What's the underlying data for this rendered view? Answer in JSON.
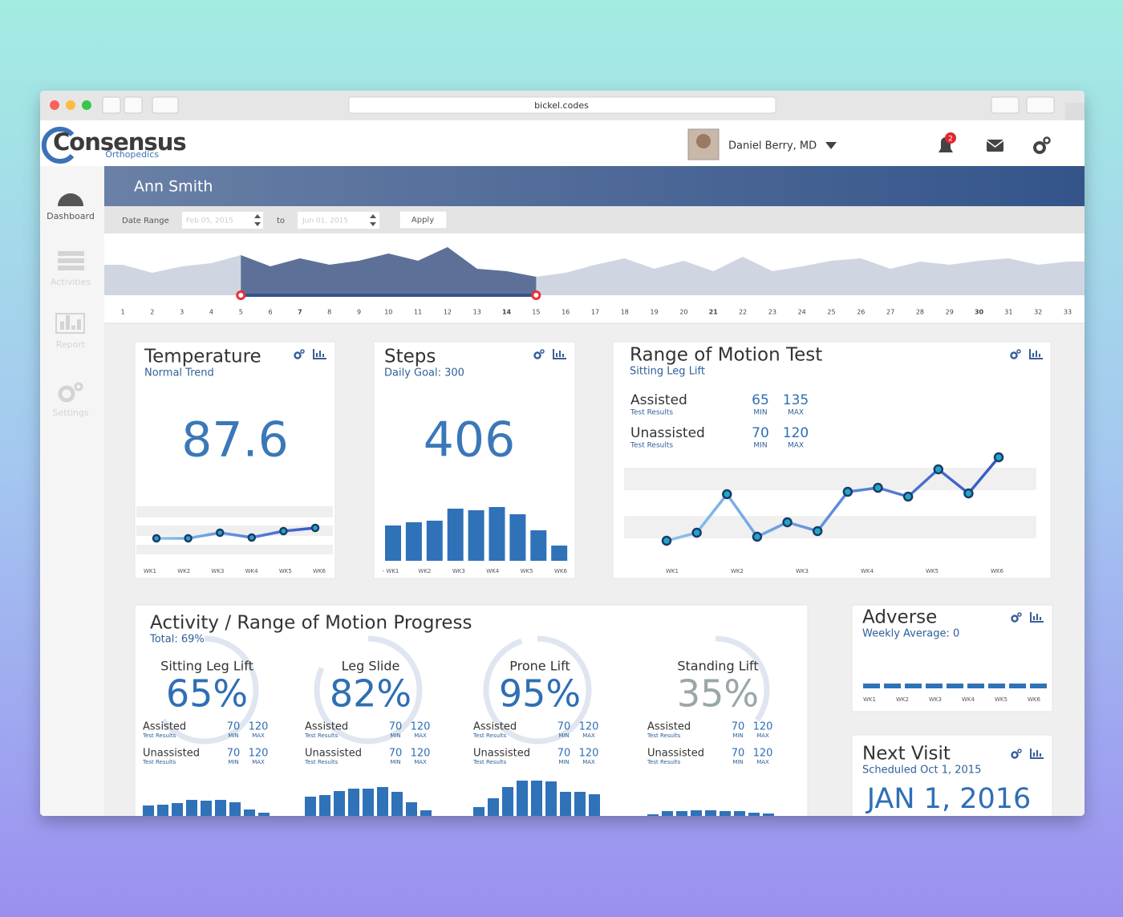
{
  "browser": {
    "url": "bickel.codes"
  },
  "header": {
    "brand": "Consensus",
    "brand_sub": "Orthopedics",
    "user": "Daniel Berry, MD",
    "notifications": 2
  },
  "sidebar": [
    {
      "label": "Dashboard",
      "active": true
    },
    {
      "label": "Activities",
      "active": false
    },
    {
      "label": "Report",
      "active": false
    },
    {
      "label": "Settings",
      "active": false
    }
  ],
  "patient": "Ann Smith",
  "filter": {
    "label": "Date Range",
    "from": "Feb 05, 2015",
    "to_label": "to",
    "to": "Jun 01, 2015",
    "button": "Apply"
  },
  "timeline": {
    "days": [
      1,
      2,
      3,
      4,
      5,
      6,
      7,
      8,
      9,
      10,
      11,
      12,
      13,
      14,
      15,
      16,
      17,
      18,
      19,
      20,
      21,
      22,
      23,
      24,
      25,
      26,
      27,
      28,
      29,
      30,
      31,
      32,
      33
    ],
    "highlighted": [
      7,
      14,
      21,
      30
    ],
    "values": [
      38,
      28,
      36,
      40,
      50,
      36,
      46,
      38,
      43,
      52,
      43,
      60,
      33,
      30,
      23,
      28,
      38,
      46,
      33,
      43,
      30,
      48,
      30,
      36,
      43,
      46,
      33,
      42,
      38,
      43,
      46,
      38,
      42
    ],
    "range": [
      5,
      15
    ]
  },
  "labels": {
    "min": "MIN",
    "max": "MAX"
  },
  "temperature": {
    "title": "Temperature",
    "subtitle": "Normal Trend",
    "value": 87.6,
    "trend": [
      4,
      4,
      11,
      5,
      13,
      17
    ],
    "weeks": [
      "WK1",
      "WK2",
      "WK3",
      "WK4",
      "WK5",
      "WK6"
    ]
  },
  "steps": {
    "title": "Steps",
    "subtitle": "Daily Goal: 300",
    "value": 406,
    "bars": [
      44,
      48,
      50,
      65,
      63,
      67,
      58,
      38,
      19
    ],
    "weeks": [
      "- WK1",
      "WK2",
      "WK3",
      "WK4",
      "WK5",
      "WK6"
    ]
  },
  "rom": {
    "title": "Range of Motion Test",
    "subtitle": "Sitting Leg Lift",
    "rows": [
      {
        "label": "Assisted",
        "sub": "Test Results",
        "min": 65,
        "max": 135
      },
      {
        "label": "Unassisted",
        "sub": "Test Results",
        "min": 70,
        "max": 120
      }
    ],
    "points": [
      16,
      26,
      74,
      21,
      39,
      28,
      77,
      82,
      71,
      105,
      75,
      120
    ],
    "weeks": [
      "WK1",
      "WK2",
      "WK3",
      "WK4",
      "WK5",
      "WK6"
    ]
  },
  "activity": {
    "title": "Activity / Range of Motion Progress",
    "total": "Total: 69%",
    "items": [
      {
        "name": "Sitting Leg Lift",
        "percent": 65,
        "percent_label": "65%",
        "rows": [
          {
            "label": "Assisted",
            "sub": "Test Results",
            "min": 70,
            "max": 120
          },
          {
            "label": "Unassisted",
            "sub": "Test Results",
            "min": 70,
            "max": 120
          }
        ],
        "bars": [
          13,
          14,
          16,
          20,
          19,
          20,
          17,
          8,
          4
        ]
      },
      {
        "name": "Leg Slide",
        "percent": 82,
        "percent_label": "82%",
        "rows": [
          {
            "label": "Assisted",
            "sub": "Test Results",
            "min": 70,
            "max": 120
          },
          {
            "label": "Unassisted",
            "sub": "Test Results",
            "min": 70,
            "max": 120
          }
        ],
        "bars": [
          24,
          26,
          31,
          34,
          34,
          36,
          30,
          17,
          7
        ]
      },
      {
        "name": "Prone Lift",
        "percent": 95,
        "percent_label": "95%",
        "rows": [
          {
            "label": "Assisted",
            "sub": "Test Results",
            "min": 70,
            "max": 120
          },
          {
            "label": "Unassisted",
            "sub": "Test Results",
            "min": 70,
            "max": 120
          }
        ],
        "bars": [
          11,
          22,
          36,
          44,
          44,
          43,
          30,
          30,
          27
        ]
      },
      {
        "name": "Standing Lift",
        "percent": 35,
        "percent_label": "35%",
        "rows": [
          {
            "label": "Assisted",
            "sub": "Test Results",
            "min": 70,
            "max": 120
          },
          {
            "label": "Unassisted",
            "sub": "Test Results",
            "min": 70,
            "max": 120
          }
        ],
        "bars": [
          2,
          6,
          6,
          7,
          7,
          6,
          6,
          4,
          3
        ]
      }
    ]
  },
  "adverse": {
    "title": "Adverse",
    "subtitle": "Weekly Average: 0",
    "bars": [
      0,
      0,
      0,
      0,
      0,
      0,
      0,
      0,
      0
    ],
    "weeks": [
      "WK1",
      "WK2",
      "WK3",
      "WK4",
      "WK5",
      "WK6"
    ]
  },
  "next_visit": {
    "title": "Next Visit",
    "subtitle": "Scheduled Oct 1, 2015",
    "date": "JAN 1, 2016"
  }
}
